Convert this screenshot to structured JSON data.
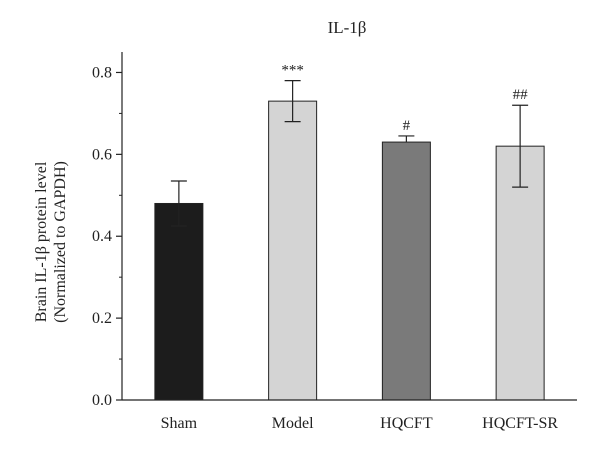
{
  "chart_data": {
    "type": "bar",
    "title": "IL-1β",
    "ylabel_line1": "Brain IL-1β protein level",
    "ylabel_line2": "(Normalized to GAPDH)",
    "xlabel": "",
    "categories": [
      "Sham",
      "Model",
      "HQCFT",
      "HQCFT-SR"
    ],
    "values": [
      0.48,
      0.73,
      0.63,
      0.62
    ],
    "errors": [
      0.055,
      0.05,
      0.015,
      0.1
    ],
    "annotations": [
      "",
      "***",
      "#",
      "##"
    ],
    "bar_colors": [
      "#1c1c1c",
      "#d4d4d4",
      "#7a7a7a",
      "#d4d4d4"
    ],
    "ylim": [
      0,
      0.85
    ],
    "yticks": [
      0.0,
      0.2,
      0.4,
      0.6,
      0.8
    ],
    "ytick_labels": [
      "0.0",
      "0.2",
      "0.4",
      "0.6",
      "0.8"
    ],
    "grid": false,
    "legend": "none"
  }
}
